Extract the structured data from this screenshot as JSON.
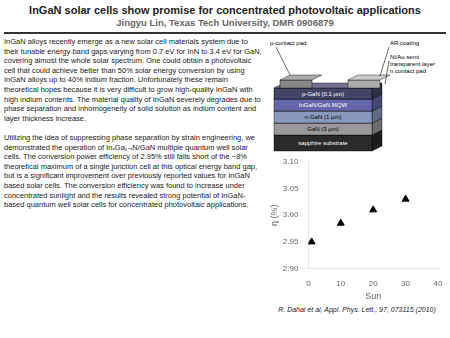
{
  "chart_data": {
    "type": "scatter",
    "title": "InGaN solar cells show promise for concentrated photovoltaic applications",
    "subtitle": "Jingyu Lin, Texas Tech University, DMR 0906879",
    "annotations": [
      "InGaN alloys recently emerge as a new solar cell materials system due to their tunable energy band gaps varying from 0.7 eV for InN to 3.4 eV for GaN, covering almost the whole solar spectrum. One could obtain a photovoltaic cell that could achieve better than 50% solar energy conversion by using InGaN alloys up to 40% indium fraction. Unfortunately these remain theoretical hopes because it is very difficult to grow high-quality InGaN with high indium contents. The material quality of InGaN severely degrades due to phase separation and inhomogeneity of solid solution as indium content and layer thickness increase.\n\nUtilizing the idea of suppressing phase separation by strain engineering, we demonstrated the operation of InₓGa₁-ₓN/GaN multiple quantum well solar cells. The conversion power efficiency of 2.95% still falls short of the ~8% theoretical maximum of a single junction cell at this optical energy band gap, but is a significant improvement over previously reported values for InGaN based solar cells. The conversion efficiency was found to increase under concentrated sunlight and the results revealed strong potential of InGaN-based quantum well solar cells for concentrated photovoltaic applications.",
      "p-contact pad",
      "AR coating",
      "Ni/Au semi\ntransparent layer\nn contact pad",
      "R. Dahal et al, Appl. Phys. Lett., 97, 073115 (2010)"
    ],
    "layers": [
      {
        "label": "sapphire substrate",
        "color": "#2a2a2a"
      },
      {
        "label": "GaN (3 μm)",
        "color": "#999999"
      },
      {
        "label": "n-GaN (1 μm)",
        "color": "#8899bb"
      },
      {
        "label": "InGaN/GaN MQW",
        "color": "#6666aa"
      },
      {
        "label": "p-GaN (0.1 μm)",
        "color": "#444466"
      }
    ],
    "x": [
      1,
      10,
      20,
      30
    ],
    "values": [
      2.95,
      2.985,
      3.01,
      3.03
    ],
    "color": "#000000",
    "marker": "triangle",
    "xlabel": "Sun",
    "ylabel": "η (%)",
    "xlim": [
      0,
      40
    ],
    "ylim": [
      2.9,
      3.1
    ],
    "xticks": [
      0,
      10,
      20,
      30,
      40
    ],
    "yticks": [
      {
        "value": 2.9,
        "label": "2.90"
      },
      2.95,
      {
        "value": 3.0,
        "label": "3.00"
      },
      3.05,
      {
        "value": 3.1,
        "label": "3.10"
      }
    ],
    "grid": false
  }
}
